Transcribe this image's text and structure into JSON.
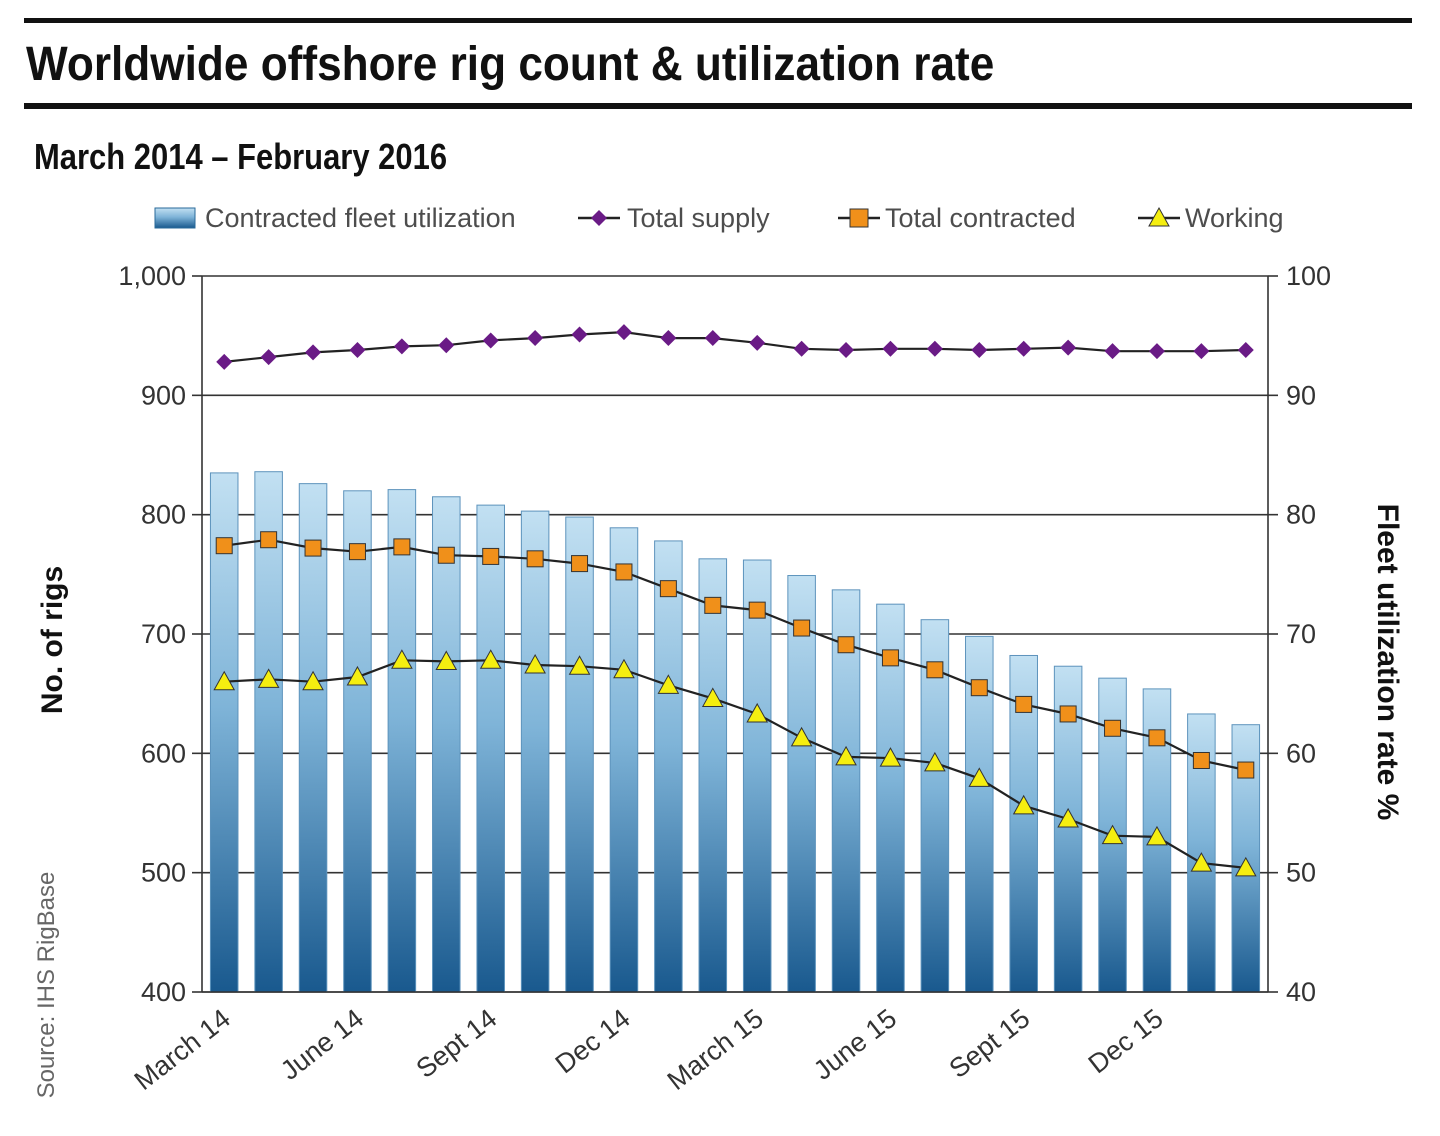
{
  "title": "Worldwide offshore rig count & utilization rate",
  "subtitle": "March 2014 – February 2016",
  "source": "Source: IHS RigBase",
  "colors": {
    "bar_top": "#bcdcef",
    "bar_bottom": "#1a5f94",
    "supply": "#6a1b86",
    "contracted": "#f0901a",
    "working": "#f5ee10",
    "line": "#222222",
    "grid": "#333333"
  },
  "chart_data": {
    "type": "bar",
    "title": "Worldwide offshore rig count & utilization rate",
    "subtitle": "March 2014 – February 2016",
    "ylabel": "No. of rigs",
    "y2label": "Fleet utilization rate %",
    "ylim": [
      400,
      1000
    ],
    "y2lim": [
      40,
      100
    ],
    "yticks": [
      "400",
      "500",
      "600",
      "700",
      "800",
      "900",
      "1,000"
    ],
    "y2ticks": [
      "40",
      "50",
      "60",
      "70",
      "80",
      "90",
      "100"
    ],
    "grid": true,
    "legend_position": "top",
    "xtick_labels": [
      "March 14",
      "June 14",
      "Sept 14",
      "Dec 14",
      "March 15",
      "June 15",
      "Sept 15",
      "Dec 15"
    ],
    "xtick_indices": [
      0,
      3,
      6,
      9,
      12,
      15,
      18,
      21
    ],
    "n_points": 24,
    "series": [
      {
        "name": "Contracted fleet utilization",
        "type": "bar",
        "axis": "right",
        "values": [
          83.5,
          83.6,
          82.6,
          82.0,
          82.1,
          81.5,
          80.8,
          80.3,
          79.8,
          78.9,
          77.8,
          76.3,
          76.2,
          74.9,
          73.7,
          72.5,
          71.2,
          69.8,
          68.2,
          67.3,
          66.3,
          65.4,
          63.3,
          62.4
        ]
      },
      {
        "name": "Total supply",
        "type": "line",
        "axis": "left",
        "marker": "diamond",
        "values": [
          928,
          932,
          936,
          938,
          941,
          942,
          946,
          948,
          951,
          953,
          948,
          948,
          944,
          939,
          938,
          939,
          939,
          938,
          939,
          940,
          937,
          937,
          937,
          938
        ]
      },
      {
        "name": "Total contracted",
        "type": "line",
        "axis": "left",
        "marker": "square",
        "values": [
          774,
          779,
          772,
          769,
          773,
          766,
          765,
          763,
          759,
          752,
          738,
          724,
          720,
          705,
          691,
          680,
          670,
          655,
          641,
          633,
          621,
          613,
          594,
          586
        ]
      },
      {
        "name": "Working",
        "type": "line",
        "axis": "left",
        "marker": "triangle",
        "values": [
          660,
          662,
          660,
          664,
          678,
          677,
          678,
          674,
          673,
          670,
          657,
          646,
          633,
          613,
          597,
          596,
          592,
          579,
          556,
          545,
          531,
          530,
          508,
          504
        ]
      }
    ]
  }
}
